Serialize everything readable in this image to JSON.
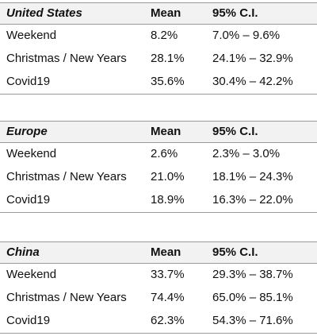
{
  "tables": [
    {
      "header": [
        "United States",
        "Mean",
        "95% C.I."
      ],
      "rows": [
        [
          "Weekend",
          "8.2%",
          "7.0% – 9.6%"
        ],
        [
          "Christmas / New Years",
          "28.1%",
          "24.1% – 32.9%"
        ],
        [
          "Covid19",
          "35.6%",
          "30.4% – 42.2%"
        ]
      ]
    },
    {
      "header": [
        "Europe",
        "Mean",
        "95% C.I."
      ],
      "rows": [
        [
          "Weekend",
          "2.6%",
          "2.3% – 3.0%"
        ],
        [
          "Christmas / New Years",
          "21.0%",
          "18.1% – 24.3%"
        ],
        [
          "Covid19",
          "18.9%",
          "16.3% – 22.0%"
        ]
      ]
    },
    {
      "header": [
        "China",
        "Mean",
        "95% C.I."
      ],
      "rows": [
        [
          "Weekend",
          "33.7%",
          "29.3% – 38.7%"
        ],
        [
          "Christmas / New Years",
          "74.4%",
          "65.0% – 85.1%"
        ],
        [
          "Covid19",
          "62.3%",
          "54.3% – 71.6%"
        ]
      ]
    }
  ]
}
